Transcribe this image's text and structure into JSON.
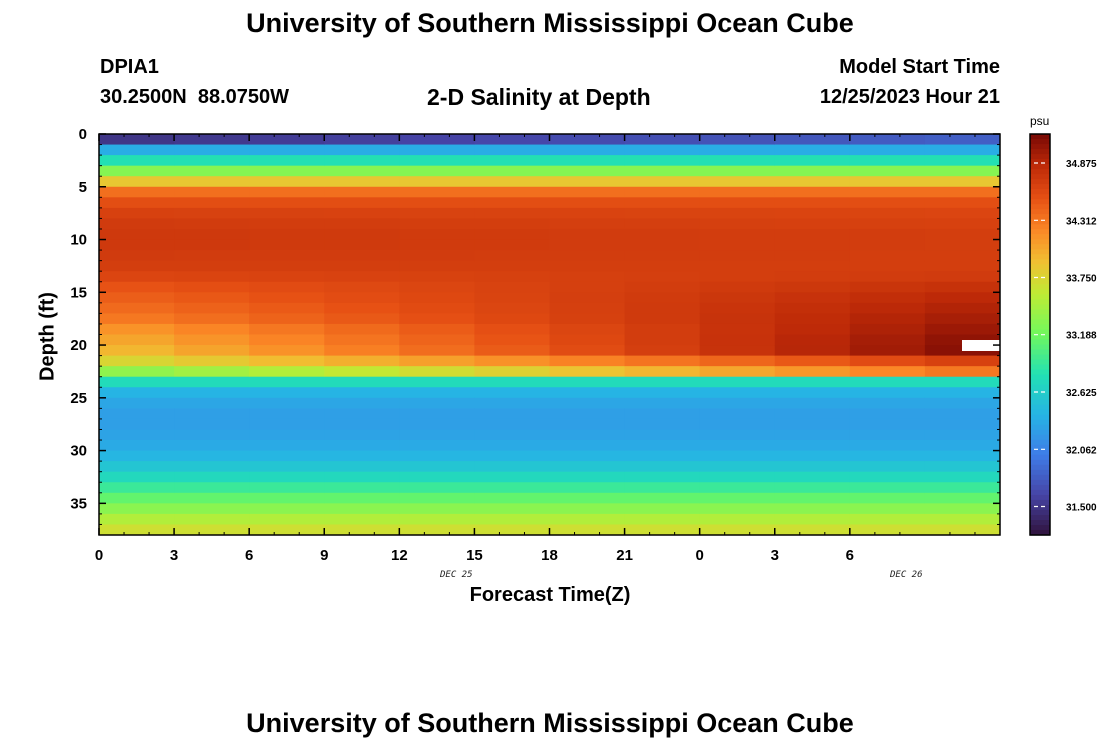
{
  "page_title": "University of Southern Mississippi Ocean Cube",
  "footer_title": "University of Southern Mississippi Ocean Cube",
  "station": {
    "id": "DPIA1",
    "coords": "30.2500N  88.0750W"
  },
  "model": {
    "label": "Model Start Time",
    "time": "12/25/2023 Hour 21"
  },
  "chart_data": {
    "type": "heatmap",
    "title": "2-D Salinity at Depth",
    "xlabel": "Forecast Time(Z)",
    "ylabel": "Depth (ft)",
    "x_tick_labels": [
      "0",
      "3",
      "6",
      "9",
      "12",
      "15",
      "18",
      "21",
      "0",
      "3",
      "6"
    ],
    "x_range_hours": [
      0,
      36
    ],
    "y_tick_labels": [
      "0",
      "5",
      "10",
      "15",
      "20",
      "25",
      "30",
      "35"
    ],
    "y_range_ft": [
      0,
      38
    ],
    "day_labels": [
      {
        "text": "DEC 25",
        "hour": 14.4
      },
      {
        "text": "DEC 26",
        "hour": 32.4
      }
    ],
    "colorbar": {
      "unit": "psu",
      "range": [
        31.22,
        35.16
      ],
      "tick_labels": [
        "34.875",
        "34.312",
        "33.750",
        "33.188",
        "32.625",
        "32.062",
        "31.500"
      ],
      "tick_values": [
        34.875,
        34.312,
        33.75,
        33.188,
        32.625,
        32.062,
        31.5
      ]
    },
    "time_columns_hours": [
      0,
      3,
      6,
      9,
      12,
      15,
      18,
      21,
      24,
      27,
      30,
      33,
      36
    ],
    "depth_levels_ft": [
      0,
      1,
      2,
      3,
      4,
      5,
      6,
      7,
      8,
      9,
      10,
      11,
      12,
      13,
      14,
      15,
      16,
      17,
      18,
      19,
      20,
      21,
      22,
      23,
      24,
      25,
      26,
      27,
      28,
      29,
      30,
      31,
      32,
      33,
      34,
      35,
      36,
      37
    ],
    "salinity_profile_start": [
      31.5,
      32.35,
      32.8,
      33.3,
      33.85,
      34.35,
      34.55,
      34.65,
      34.7,
      34.72,
      34.72,
      34.7,
      34.68,
      34.62,
      34.52,
      34.45,
      34.38,
      34.3,
      34.15,
      34.05,
      33.95,
      33.75,
      33.35,
      32.75,
      32.4,
      32.3,
      32.25,
      32.25,
      32.28,
      32.33,
      32.42,
      32.55,
      32.72,
      32.92,
      33.12,
      33.32,
      33.52,
      33.68
    ],
    "salinity_profile_end": [
      31.8,
      32.35,
      32.8,
      33.3,
      33.85,
      34.35,
      34.55,
      34.62,
      34.65,
      34.68,
      34.68,
      34.68,
      34.68,
      34.7,
      34.78,
      34.85,
      34.9,
      34.95,
      35.0,
      35.05,
      35.08,
      34.65,
      34.3,
      32.75,
      32.4,
      32.3,
      32.25,
      32.25,
      32.28,
      32.33,
      32.42,
      32.55,
      32.72,
      32.92,
      33.12,
      33.32,
      33.52,
      33.68
    ]
  }
}
